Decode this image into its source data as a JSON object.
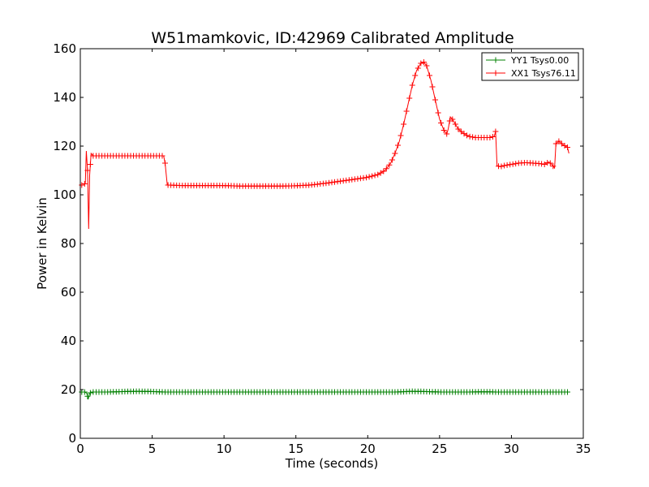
{
  "chart_data": {
    "type": "line",
    "title": "W51mamkovic, ID:42969 Calibrated Amplitude",
    "xlabel": "Time (seconds)",
    "ylabel": "Power in Kelvin",
    "xlim": [
      0,
      35
    ],
    "ylim": [
      0,
      160
    ],
    "xticks": [
      0,
      5,
      10,
      15,
      20,
      25,
      30,
      35
    ],
    "yticks": [
      0,
      20,
      40,
      60,
      80,
      100,
      120,
      140,
      160
    ],
    "xtick_labels": [
      "0",
      "5",
      "10",
      "15",
      "20",
      "25",
      "30",
      "35"
    ],
    "ytick_labels": [
      "0",
      "20",
      "40",
      "60",
      "80",
      "100",
      "120",
      "140",
      "160"
    ],
    "grid": false,
    "legend_position": "top-right",
    "marker": "+",
    "series": [
      {
        "name": "YY1 Tsys0.00",
        "color": "#008000",
        "points": [
          [
            0.1,
            19
          ],
          [
            0.3,
            19
          ],
          [
            0.45,
            18.5
          ],
          [
            0.55,
            16
          ],
          [
            0.65,
            18.5
          ],
          [
            0.8,
            19
          ],
          [
            1.0,
            19
          ],
          [
            2.0,
            19
          ],
          [
            3.0,
            19.2
          ],
          [
            4.0,
            19.3
          ],
          [
            5.0,
            19.2
          ],
          [
            5.8,
            19
          ],
          [
            6.0,
            19
          ],
          [
            8.0,
            19
          ],
          [
            10.0,
            19
          ],
          [
            12.0,
            19
          ],
          [
            14.0,
            19
          ],
          [
            16.0,
            19
          ],
          [
            18.0,
            19
          ],
          [
            20.0,
            19
          ],
          [
            22.0,
            19
          ],
          [
            23.0,
            19.3
          ],
          [
            24.0,
            19.2
          ],
          [
            25.0,
            19
          ],
          [
            26.0,
            19
          ],
          [
            27.0,
            19
          ],
          [
            28.0,
            19.1
          ],
          [
            29.0,
            19
          ],
          [
            30.0,
            19
          ],
          [
            31.0,
            19
          ],
          [
            32.0,
            19
          ],
          [
            33.0,
            19
          ],
          [
            34.0,
            19
          ]
        ]
      },
      {
        "name": "XX1 Tsys76.11",
        "color": "#ff0000",
        "points": [
          [
            0.1,
            104
          ],
          [
            0.25,
            104
          ],
          [
            0.35,
            105
          ],
          [
            0.42,
            118
          ],
          [
            0.5,
            110
          ],
          [
            0.58,
            86
          ],
          [
            0.65,
            108
          ],
          [
            0.75,
            117
          ],
          [
            0.9,
            116
          ],
          [
            1.0,
            116
          ],
          [
            1.5,
            116
          ],
          [
            2.0,
            116
          ],
          [
            3.0,
            116
          ],
          [
            4.0,
            116
          ],
          [
            5.0,
            116
          ],
          [
            5.6,
            116
          ],
          [
            5.8,
            116
          ],
          [
            5.9,
            113
          ],
          [
            6.05,
            104
          ],
          [
            6.2,
            104
          ],
          [
            7.0,
            103.8
          ],
          [
            8.0,
            103.8
          ],
          [
            9.0,
            103.8
          ],
          [
            10.0,
            103.8
          ],
          [
            11.0,
            103.6
          ],
          [
            12.0,
            103.6
          ],
          [
            13.0,
            103.6
          ],
          [
            14.0,
            103.6
          ],
          [
            15.0,
            103.7
          ],
          [
            16.0,
            104
          ],
          [
            17.0,
            104.7
          ],
          [
            18.0,
            105.5
          ],
          [
            19.0,
            106.3
          ],
          [
            20.0,
            107.2
          ],
          [
            20.7,
            108.3
          ],
          [
            21.2,
            110
          ],
          [
            21.6,
            113
          ],
          [
            21.9,
            117
          ],
          [
            22.2,
            122
          ],
          [
            22.5,
            129
          ],
          [
            22.8,
            137
          ],
          [
            23.1,
            145
          ],
          [
            23.4,
            151
          ],
          [
            23.7,
            154
          ],
          [
            23.9,
            154.5
          ],
          [
            24.1,
            153
          ],
          [
            24.4,
            147
          ],
          [
            24.7,
            139
          ],
          [
            25.0,
            131
          ],
          [
            25.3,
            126.5
          ],
          [
            25.5,
            125
          ],
          [
            25.6,
            127
          ],
          [
            25.75,
            132
          ],
          [
            25.9,
            131
          ],
          [
            26.1,
            129
          ],
          [
            26.3,
            127
          ],
          [
            26.6,
            125.5
          ],
          [
            27.0,
            124
          ],
          [
            27.5,
            123.5
          ],
          [
            28.0,
            123.5
          ],
          [
            28.5,
            123.5
          ],
          [
            28.8,
            124
          ],
          [
            28.9,
            126
          ],
          [
            29.0,
            112
          ],
          [
            29.2,
            111.5
          ],
          [
            29.5,
            112
          ],
          [
            30.0,
            112.5
          ],
          [
            30.5,
            113
          ],
          [
            31.0,
            113.2
          ],
          [
            31.5,
            113
          ],
          [
            32.0,
            112.8
          ],
          [
            32.3,
            112.5
          ],
          [
            32.6,
            113.5
          ],
          [
            32.8,
            112.5
          ],
          [
            33.0,
            111
          ],
          [
            33.1,
            121
          ],
          [
            33.3,
            122
          ],
          [
            33.6,
            120.5
          ],
          [
            33.9,
            119.5
          ],
          [
            34.0,
            117
          ]
        ]
      }
    ]
  }
}
